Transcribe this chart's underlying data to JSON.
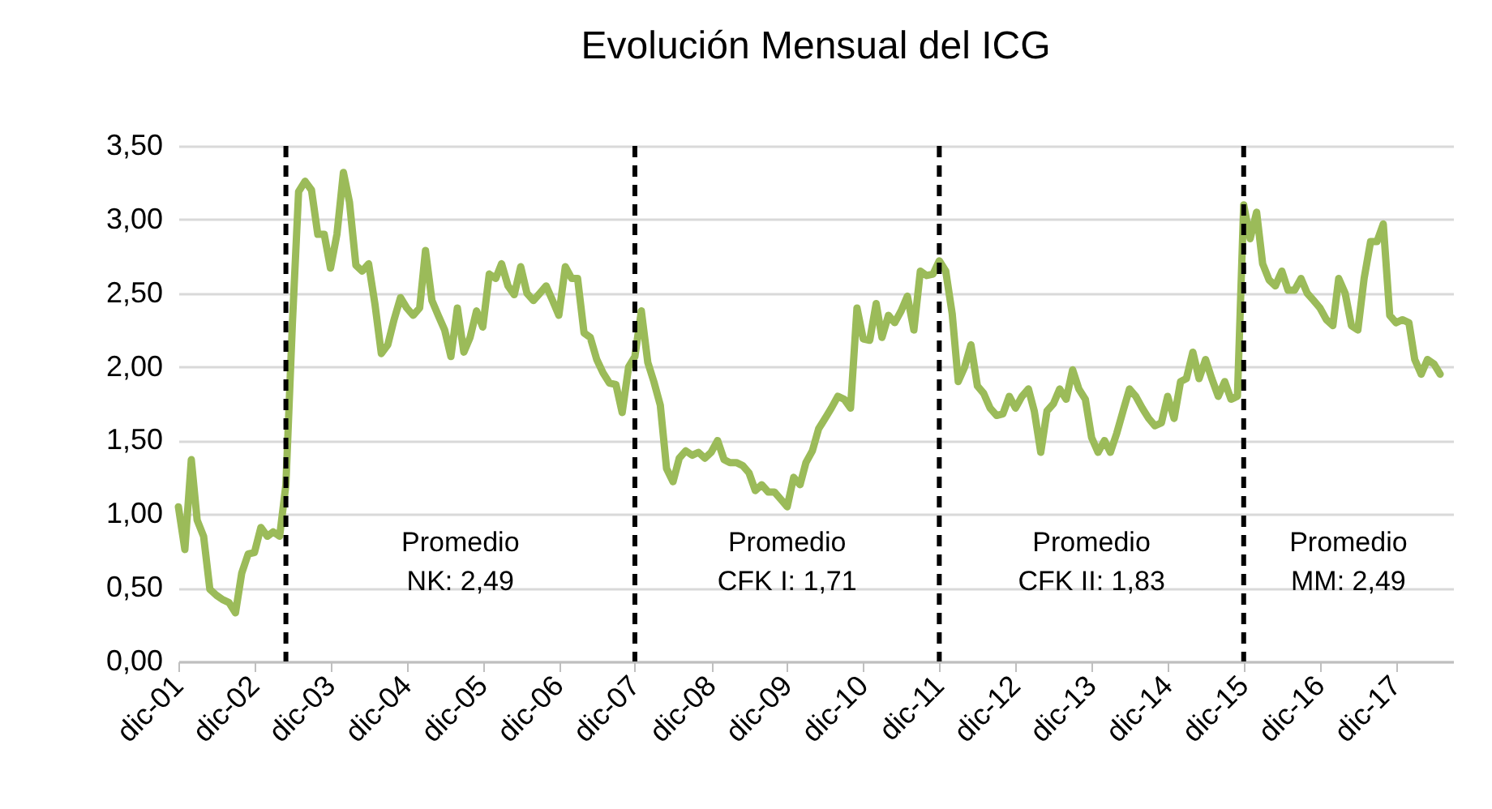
{
  "chart_data": {
    "type": "line",
    "title": "Evolución Mensual del ICG",
    "x": [
      "2001-12",
      "2002-01",
      "2002-02",
      "2002-03",
      "2002-04",
      "2002-05",
      "2002-06",
      "2002-07",
      "2002-08",
      "2002-09",
      "2002-10",
      "2002-11",
      "2002-12",
      "2003-01",
      "2003-02",
      "2003-03",
      "2003-04",
      "2003-05",
      "2003-06",
      "2003-07",
      "2003-08",
      "2003-09",
      "2003-10",
      "2003-11",
      "2003-12",
      "2004-01",
      "2004-02",
      "2004-03",
      "2004-04",
      "2004-05",
      "2004-06",
      "2004-07",
      "2004-08",
      "2004-09",
      "2004-10",
      "2004-11",
      "2004-12",
      "2005-01",
      "2005-02",
      "2005-03",
      "2005-04",
      "2005-05",
      "2005-06",
      "2005-07",
      "2005-08",
      "2005-09",
      "2005-10",
      "2005-11",
      "2005-12",
      "2006-01",
      "2006-02",
      "2006-03",
      "2006-04",
      "2006-05",
      "2006-06",
      "2006-07",
      "2006-08",
      "2006-09",
      "2006-10",
      "2006-11",
      "2006-12",
      "2007-01",
      "2007-02",
      "2007-03",
      "2007-04",
      "2007-05",
      "2007-06",
      "2007-07",
      "2007-08",
      "2007-09",
      "2007-10",
      "2007-11",
      "2007-12",
      "2008-01",
      "2008-02",
      "2008-03",
      "2008-04",
      "2008-05",
      "2008-06",
      "2008-07",
      "2008-08",
      "2008-09",
      "2008-10",
      "2008-11",
      "2008-12",
      "2009-01",
      "2009-02",
      "2009-03",
      "2009-04",
      "2009-05",
      "2009-06",
      "2009-07",
      "2009-08",
      "2009-09",
      "2009-10",
      "2009-11",
      "2009-12",
      "2010-01",
      "2010-02",
      "2010-03",
      "2010-04",
      "2010-05",
      "2010-06",
      "2010-07",
      "2010-08",
      "2010-09",
      "2010-10",
      "2010-11",
      "2010-12",
      "2011-01",
      "2011-02",
      "2011-03",
      "2011-04",
      "2011-05",
      "2011-06",
      "2011-07",
      "2011-08",
      "2011-09",
      "2011-10",
      "2011-11",
      "2011-12",
      "2012-01",
      "2012-02",
      "2012-03",
      "2012-04",
      "2012-05",
      "2012-06",
      "2012-07",
      "2012-08",
      "2012-09",
      "2012-10",
      "2012-11",
      "2012-12",
      "2013-01",
      "2013-02",
      "2013-03",
      "2013-04",
      "2013-05",
      "2013-06",
      "2013-07",
      "2013-08",
      "2013-09",
      "2013-10",
      "2013-11",
      "2013-12",
      "2014-01",
      "2014-02",
      "2014-03",
      "2014-04",
      "2014-05",
      "2014-06",
      "2014-07",
      "2014-08",
      "2014-09",
      "2014-10",
      "2014-11",
      "2014-12",
      "2015-01",
      "2015-02",
      "2015-03",
      "2015-04",
      "2015-05",
      "2015-06",
      "2015-07",
      "2015-08",
      "2015-09",
      "2015-10",
      "2015-11",
      "2015-12",
      "2016-01",
      "2016-02",
      "2016-03",
      "2016-04",
      "2016-05",
      "2016-06",
      "2016-07",
      "2016-08",
      "2016-09",
      "2016-10",
      "2016-11",
      "2016-12",
      "2017-01",
      "2017-02",
      "2017-03",
      "2017-04",
      "2017-05",
      "2017-06",
      "2017-07",
      "2017-08",
      "2017-09",
      "2017-10",
      "2017-11",
      "2017-12",
      "2018-01",
      "2018-02",
      "2018-03",
      "2018-04",
      "2018-05",
      "2018-06",
      "2018-07"
    ],
    "series": [
      {
        "color": "#9bbb59",
        "values": [
          1.05,
          0.76,
          1.37,
          0.96,
          0.85,
          0.49,
          0.45,
          0.42,
          0.4,
          0.33,
          0.6,
          0.73,
          0.74,
          0.91,
          0.85,
          0.88,
          0.85,
          1.2,
          2.29,
          3.19,
          3.26,
          3.2,
          2.9,
          2.9,
          2.67,
          2.9,
          3.32,
          3.12,
          2.69,
          2.65,
          2.7,
          2.43,
          2.09,
          2.15,
          2.32,
          2.47,
          2.4,
          2.35,
          2.4,
          2.79,
          2.45,
          2.35,
          2.25,
          2.07,
          2.4,
          2.1,
          2.2,
          2.38,
          2.27,
          2.63,
          2.6,
          2.7,
          2.55,
          2.49,
          2.68,
          2.5,
          2.45,
          2.5,
          2.55,
          2.45,
          2.35,
          2.68,
          2.6,
          2.6,
          2.23,
          2.2,
          2.05,
          1.96,
          1.89,
          1.88,
          1.69,
          2.0,
          2.07,
          2.38,
          2.03,
          1.9,
          1.74,
          1.31,
          1.22,
          1.38,
          1.43,
          1.4,
          1.42,
          1.38,
          1.42,
          1.5,
          1.37,
          1.35,
          1.35,
          1.33,
          1.28,
          1.16,
          1.2,
          1.15,
          1.15,
          1.1,
          1.05,
          1.25,
          1.2,
          1.35,
          1.43,
          1.58,
          1.65,
          1.72,
          1.8,
          1.78,
          1.72,
          2.4,
          2.19,
          2.18,
          2.43,
          2.2,
          2.35,
          2.3,
          2.38,
          2.48,
          2.25,
          2.65,
          2.62,
          2.63,
          2.72,
          2.65,
          2.36,
          1.9,
          2.0,
          2.15,
          1.87,
          1.82,
          1.72,
          1.67,
          1.68,
          1.8,
          1.72,
          1.8,
          1.85,
          1.7,
          1.42,
          1.7,
          1.75,
          1.85,
          1.78,
          1.98,
          1.85,
          1.78,
          1.52,
          1.42,
          1.5,
          1.42,
          1.55,
          1.7,
          1.85,
          1.8,
          1.72,
          1.65,
          1.6,
          1.62,
          1.8,
          1.65,
          1.9,
          1.92,
          2.1,
          1.92,
          2.05,
          1.92,
          1.8,
          1.9,
          1.78,
          1.8,
          3.1,
          2.87,
          3.05,
          2.7,
          2.59,
          2.55,
          2.65,
          2.52,
          2.52,
          2.6,
          2.5,
          2.45,
          2.4,
          2.32,
          2.28,
          2.6,
          2.5,
          2.28,
          2.25,
          2.6,
          2.85,
          2.85,
          2.97,
          2.35,
          2.3,
          2.32,
          2.3,
          2.05,
          1.95,
          2.05,
          2.02,
          1.95
        ]
      }
    ],
    "xlim": [
      "2001-12",
      "2018-09"
    ],
    "xticks": [
      {
        "value": "2001-12",
        "label": "dic-01"
      },
      {
        "value": "2002-12",
        "label": "dic-02"
      },
      {
        "value": "2003-12",
        "label": "dic-03"
      },
      {
        "value": "2004-12",
        "label": "dic-04"
      },
      {
        "value": "2005-12",
        "label": "dic-05"
      },
      {
        "value": "2006-12",
        "label": "dic-06"
      },
      {
        "value": "2007-12",
        "label": "dic-07"
      },
      {
        "value": "2008-12",
        "label": "dic-08"
      },
      {
        "value": "2009-12",
        "label": "dic-09"
      },
      {
        "value": "2010-12",
        "label": "dic-10"
      },
      {
        "value": "2011-12",
        "label": "dic-11"
      },
      {
        "value": "2012-12",
        "label": "dic-12"
      },
      {
        "value": "2013-12",
        "label": "dic-13"
      },
      {
        "value": "2014-12",
        "label": "dic-14"
      },
      {
        "value": "2015-12",
        "label": "dic-15"
      },
      {
        "value": "2016-12",
        "label": "dic-16"
      },
      {
        "value": "2017-12",
        "label": "dic-17"
      }
    ],
    "ylim": [
      0,
      3.5
    ],
    "yticks": [
      {
        "value": 0,
        "label": "0,00"
      },
      {
        "value": 0.5,
        "label": "0,50"
      },
      {
        "value": 1,
        "label": "1,00"
      },
      {
        "value": 1.5,
        "label": "1,50"
      },
      {
        "value": 2,
        "label": "2,00"
      },
      {
        "value": 2.5,
        "label": "2,50"
      },
      {
        "value": 3,
        "label": "3,00"
      },
      {
        "value": 3.5,
        "label": "3,50"
      }
    ],
    "grid": "y",
    "ref_lines": [
      {
        "axis": "x",
        "value": "2003-05",
        "color": "#000000",
        "line_style": "dashed"
      },
      {
        "axis": "x",
        "value": "2007-12",
        "color": "#000000",
        "line_style": "dashed"
      },
      {
        "axis": "x",
        "value": "2011-12",
        "color": "#000000",
        "line_style": "dashed"
      },
      {
        "axis": "x",
        "value": "2015-12",
        "color": "#000000",
        "line_style": "dashed"
      }
    ],
    "annotations": [
      "Promedio\nNK: 2,49",
      "Promedio\nCFK I: 1,71",
      "Promedio\nCFK II: 1,83",
      "Promedio\nMM: 2,49"
    ]
  }
}
